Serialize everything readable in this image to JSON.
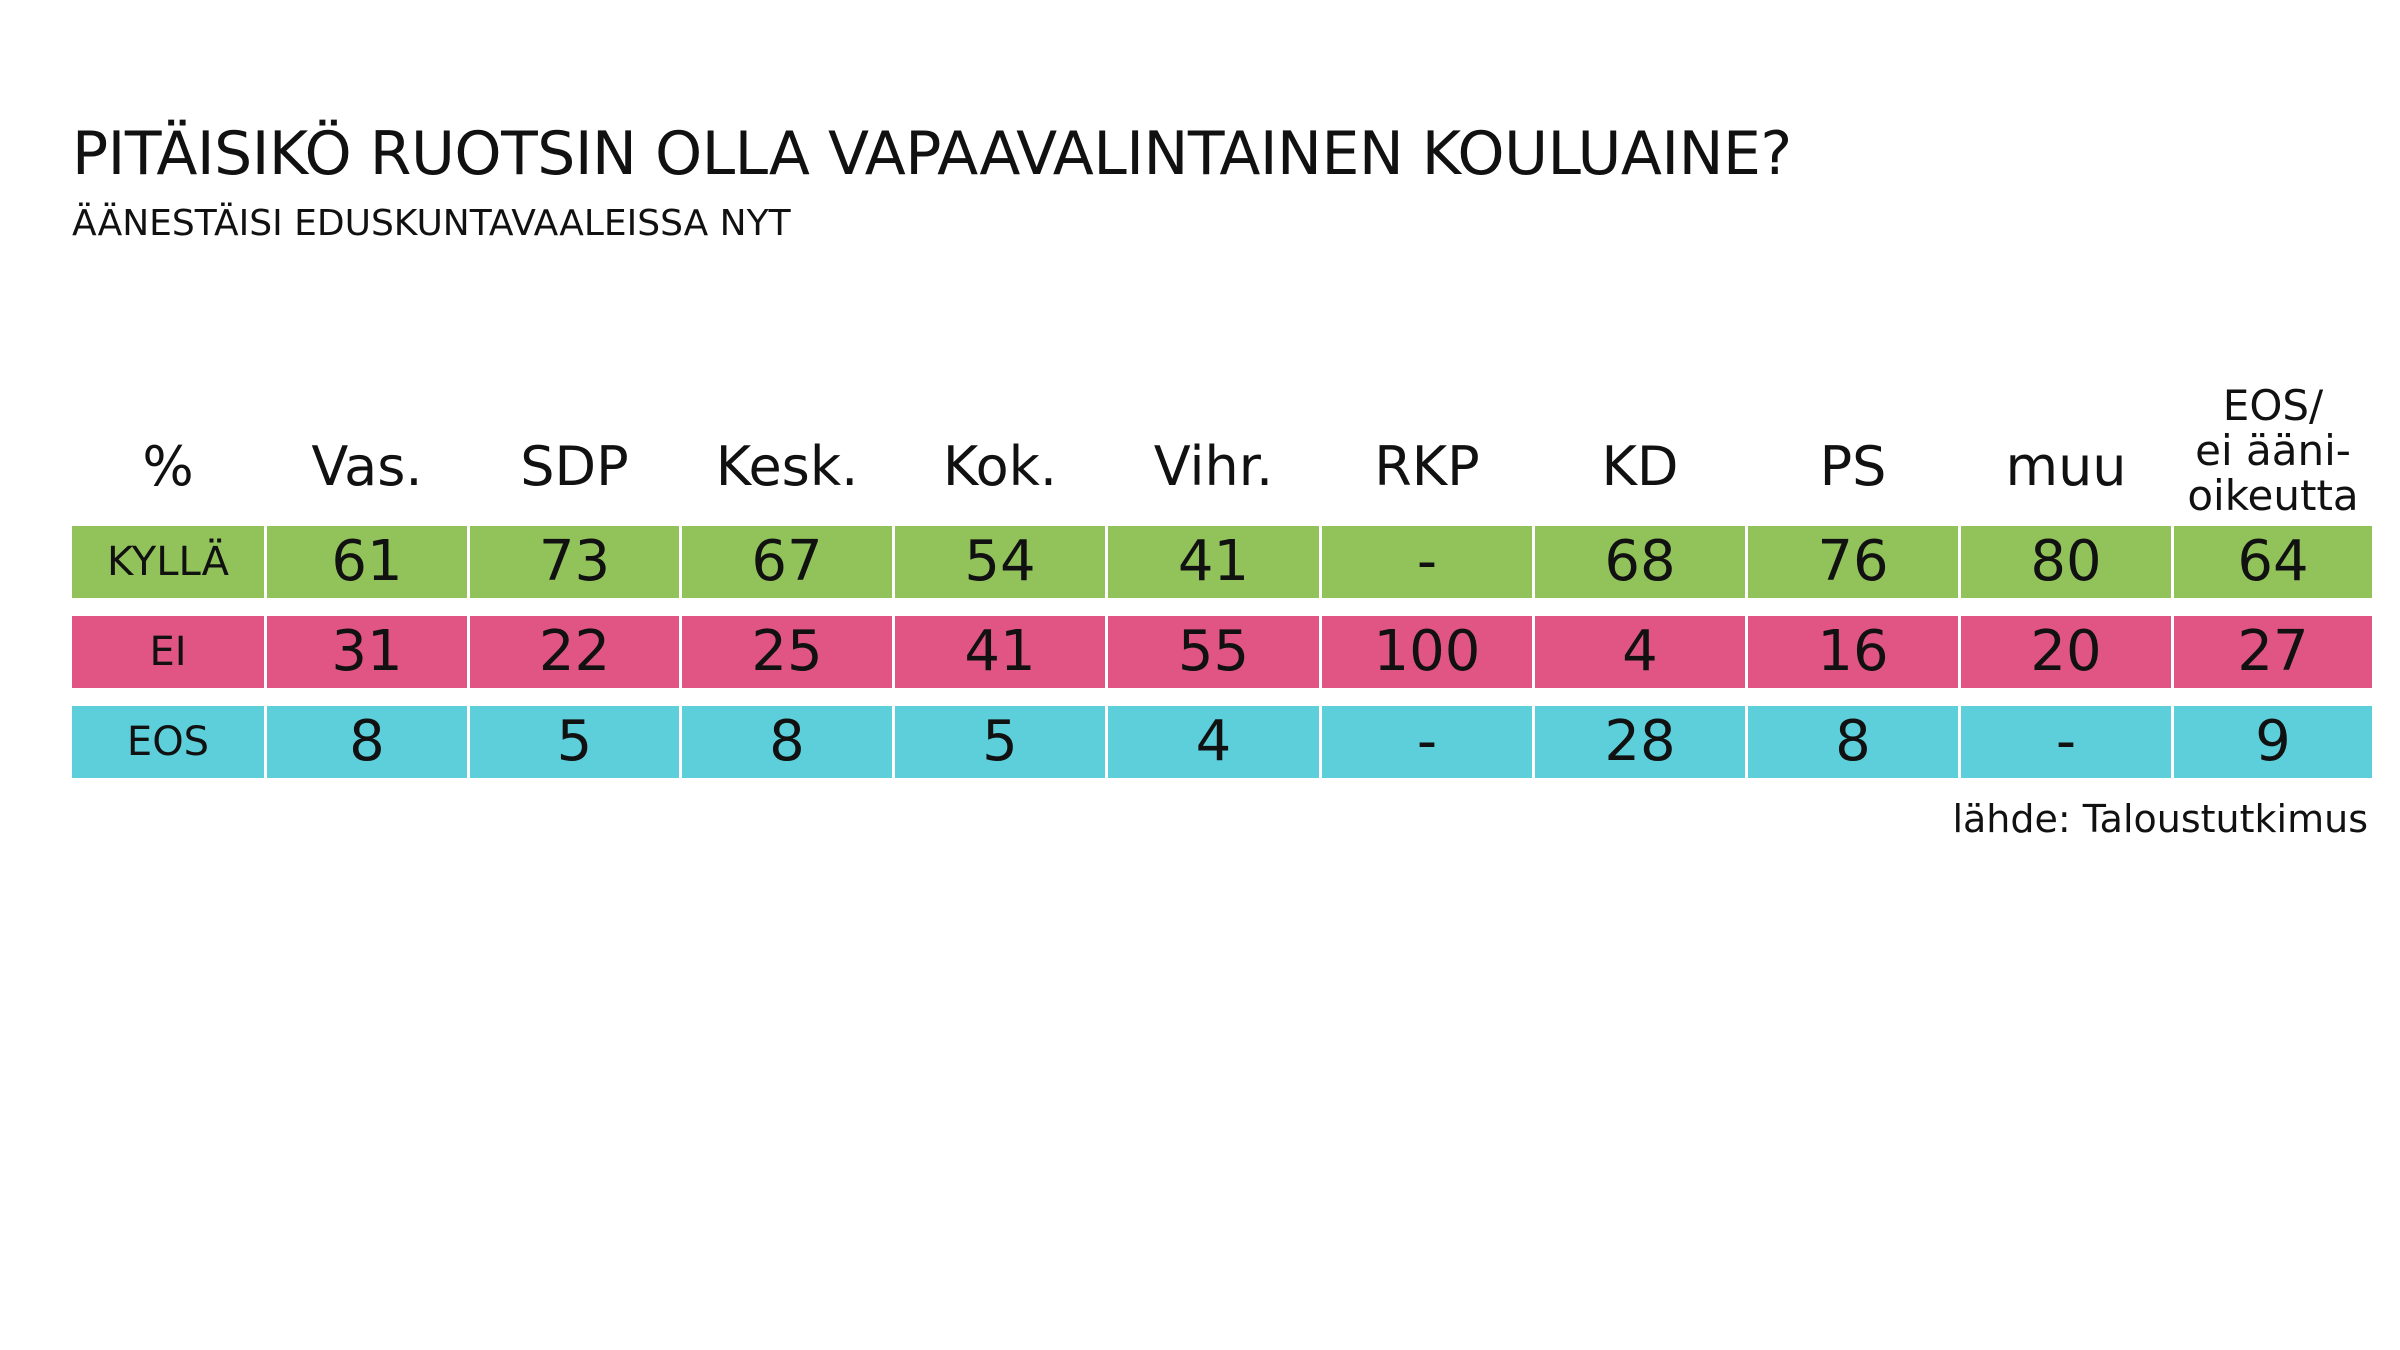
{
  "title": "PITÄISIKÖ RUOTSIN OLLA VAPAAVALINTAINEN KOULUAINE?",
  "subtitle": "ÄÄNESTÄISI EDUSKUNTAVAALEISSA NYT",
  "source": "lähde: Taloustutkimus",
  "colors": {
    "kylla": "#92c35b",
    "ei": "#e05584",
    "eos": "#5ccfdb"
  },
  "chart_data": {
    "type": "table",
    "corner_label": "%",
    "columns": [
      "Vas.",
      "SDP",
      "Kesk.",
      "Kok.",
      "Vihr.",
      "RKP",
      "KD",
      "PS",
      "muu",
      "EOS/ ei ääni- oikeutta"
    ],
    "last_column_lines": [
      "EOS/",
      "ei ääni-",
      "oikeutta"
    ],
    "rows": [
      {
        "label": "KYLLÄ",
        "color": "#92c35b",
        "values": [
          "61",
          "73",
          "67",
          "54",
          "41",
          "-",
          "68",
          "76",
          "80",
          "64"
        ]
      },
      {
        "label": "EI",
        "color": "#e05584",
        "values": [
          "31",
          "22",
          "25",
          "41",
          "55",
          "100",
          "4",
          "16",
          "20",
          "27"
        ]
      },
      {
        "label": "EOS",
        "color": "#5ccfdb",
        "values": [
          "8",
          "5",
          "8",
          "5",
          "4",
          "-",
          "28",
          "8",
          "-",
          "9"
        ]
      }
    ]
  }
}
